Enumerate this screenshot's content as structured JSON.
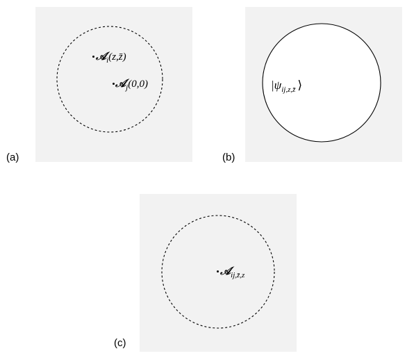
{
  "panels": [
    {
      "label": "(a)",
      "operators": [
        {
          "symbol": "𝒜",
          "subscript": "i",
          "args": "(z,z̄)"
        },
        {
          "symbol": "𝒜",
          "subscript": "j",
          "args": "(0,0)"
        }
      ]
    },
    {
      "label": "(b)",
      "state": {
        "prefix": "|ψ",
        "subscript": "ij,z,z̄",
        "suffix": "⟩"
      }
    },
    {
      "label": "(c)",
      "operators": [
        {
          "symbol": "𝒜",
          "subscript": "ij,z̄,z",
          "args": ""
        }
      ]
    }
  ],
  "colors": {
    "panel_background": "#f2f2f2",
    "circle_stroke": "#000000",
    "circle_fill_b": "#ffffff"
  },
  "circles": {
    "a": "dashed",
    "b": "solid",
    "c": "dashed"
  }
}
